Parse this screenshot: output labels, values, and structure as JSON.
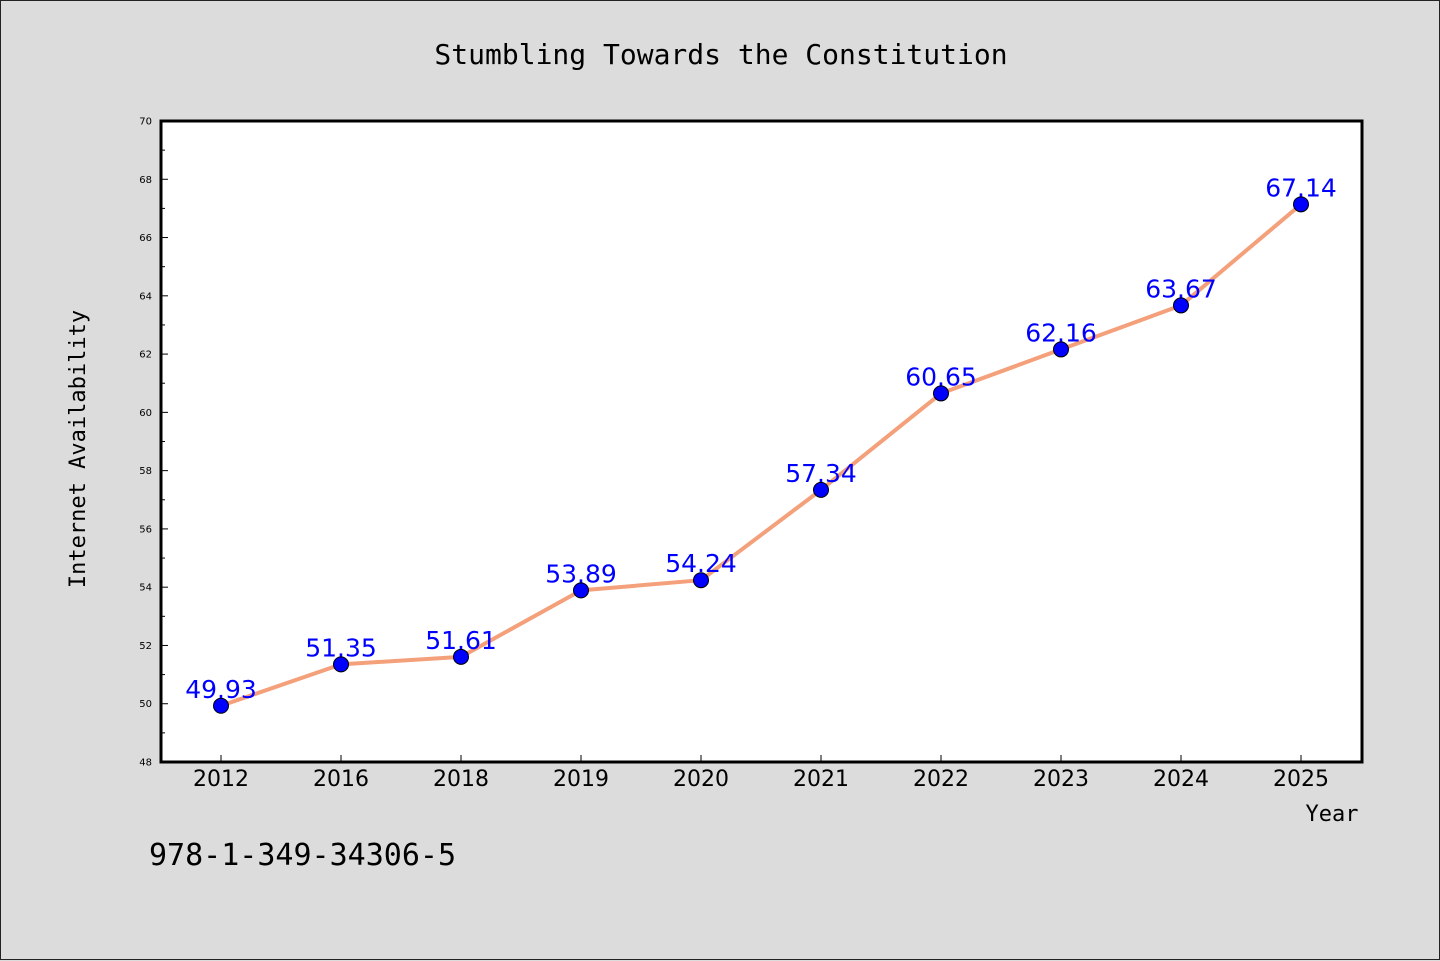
{
  "chart_data": {
    "type": "line",
    "title": "Stumbling Towards the Constitution",
    "xlabel": "Year",
    "ylabel": "Internet Availability",
    "categories": [
      "2012",
      "2016",
      "2018",
      "2019",
      "2020",
      "2021",
      "2022",
      "2023",
      "2024",
      "2025"
    ],
    "series": [
      {
        "values": [
          49.93,
          51.35,
          51.61,
          53.89,
          54.24,
          57.34,
          60.65,
          62.16,
          63.67,
          67.14
        ],
        "data_labels": [
          "49.93",
          "51.35",
          "51.61",
          "53.89",
          "54.24",
          "57.34",
          "60.65",
          "62.16",
          "63.67",
          "67.14"
        ]
      }
    ],
    "ylim": [
      48,
      70
    ],
    "yticks": [
      48,
      50,
      52,
      54,
      56,
      58,
      60,
      62,
      64,
      66,
      68,
      70
    ],
    "ytick_labels": [
      "48",
      "50",
      "52",
      "54",
      "56",
      "58",
      "60",
      "62",
      "64",
      "66",
      "68",
      "70"
    ],
    "grid": false,
    "legend": "none",
    "colors": {
      "line": "#f4a07a",
      "marker": "#0000ff",
      "data_label": "#0000ff",
      "plot_background": "#ffffff",
      "figure_background": "#dcdcdc"
    }
  },
  "annotation": {
    "isbn": "978-1-349-34306-5"
  }
}
